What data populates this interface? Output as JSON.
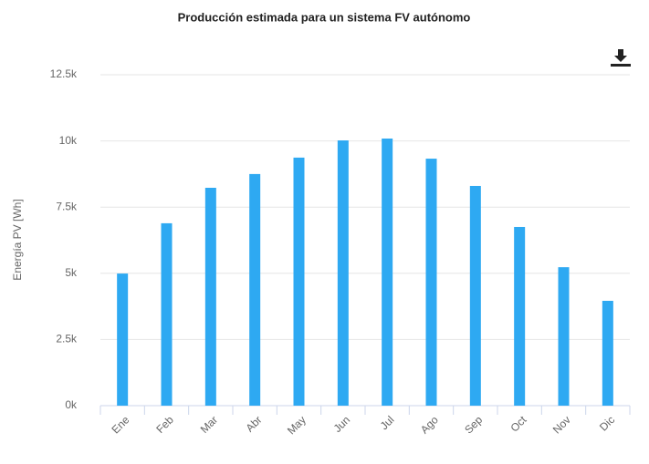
{
  "chart_data": {
    "type": "bar",
    "title": "Producción estimada para un sistema FV autónomo",
    "y_label": "Energía PV [Wh]",
    "categories": [
      "Ene",
      "Feb",
      "Mar",
      "Abr",
      "May",
      "Jun",
      "Jul",
      "Ago",
      "Sep",
      "Oct",
      "Nov",
      "Dic"
    ],
    "values": [
      4990,
      6890,
      8230,
      8750,
      9370,
      10020,
      10090,
      9330,
      8300,
      6750,
      5230,
      3960
    ],
    "color": "#2ea9f2",
    "ylim": [
      0,
      12500
    ],
    "yticks": [
      {
        "value": 0,
        "label": "0k"
      },
      {
        "value": 2500,
        "label": "2.5k"
      },
      {
        "value": 5000,
        "label": "5k"
      },
      {
        "value": 7500,
        "label": "7.5k"
      },
      {
        "value": 10000,
        "label": "10k"
      },
      {
        "value": 12500,
        "label": "12.5k"
      }
    ],
    "grid": true
  }
}
